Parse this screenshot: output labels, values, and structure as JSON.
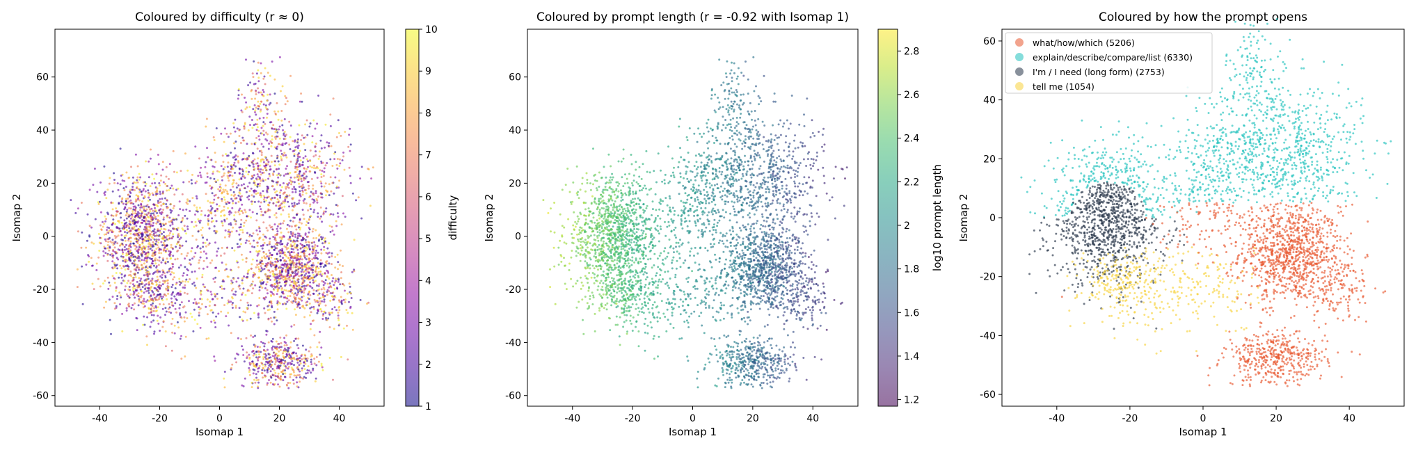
{
  "chart_data": [
    {
      "type": "scatter",
      "title": "Coloured by difficulty (r ≈ 0)",
      "xlabel": "Isomap 1",
      "ylabel": "Isomap 2",
      "xlim": [
        -55,
        55
      ],
      "ylim": [
        -64,
        78
      ],
      "xticks": [
        -40,
        -20,
        0,
        20,
        40
      ],
      "yticks": [
        -60,
        -40,
        -20,
        0,
        20,
        40,
        60
      ],
      "colorbar": {
        "label": "difficulty",
        "range": [
          1,
          10
        ],
        "ticks": [
          1,
          2,
          3,
          4,
          5,
          6,
          7,
          8,
          9,
          10
        ],
        "colormap": "plasma"
      }
    },
    {
      "type": "scatter",
      "title": "Coloured by prompt length (r = -0.92 with Isomap 1)",
      "xlabel": "Isomap 1",
      "ylabel": "Isomap 2",
      "xlim": [
        -55,
        55
      ],
      "ylim": [
        -64,
        78
      ],
      "xticks": [
        -40,
        -20,
        0,
        20,
        40
      ],
      "yticks": [
        -60,
        -40,
        -20,
        0,
        20,
        40,
        60
      ],
      "colorbar": {
        "label": "log10 prompt length",
        "range": [
          1.17,
          2.9
        ],
        "ticks": [
          1.2,
          1.4,
          1.6,
          1.8,
          2.0,
          2.2,
          2.4,
          2.6,
          2.8
        ],
        "colormap": "viridis"
      }
    },
    {
      "type": "scatter",
      "title": "Coloured by how the prompt opens",
      "xlabel": "Isomap 1",
      "ylabel": "Isomap 2",
      "xlim": [
        -55,
        55
      ],
      "ylim": [
        -64,
        64
      ],
      "xticks": [
        -40,
        -20,
        0,
        20,
        40
      ],
      "yticks": [
        -60,
        -40,
        -20,
        0,
        20,
        40,
        60
      ],
      "legend_position": "top-left",
      "series": [
        {
          "name": "what/how/which (5206)",
          "count": 5206,
          "color": "#e8572f"
        },
        {
          "name": "explain/describe/compare/list (6330)",
          "count": 6330,
          "color": "#21c1bd"
        },
        {
          "name": "I'm / I need (long form) (2753)",
          "count": 2753,
          "color": "#263448"
        },
        {
          "name": "tell me (1054)",
          "count": 1054,
          "color": "#f7d23c"
        }
      ]
    }
  ]
}
